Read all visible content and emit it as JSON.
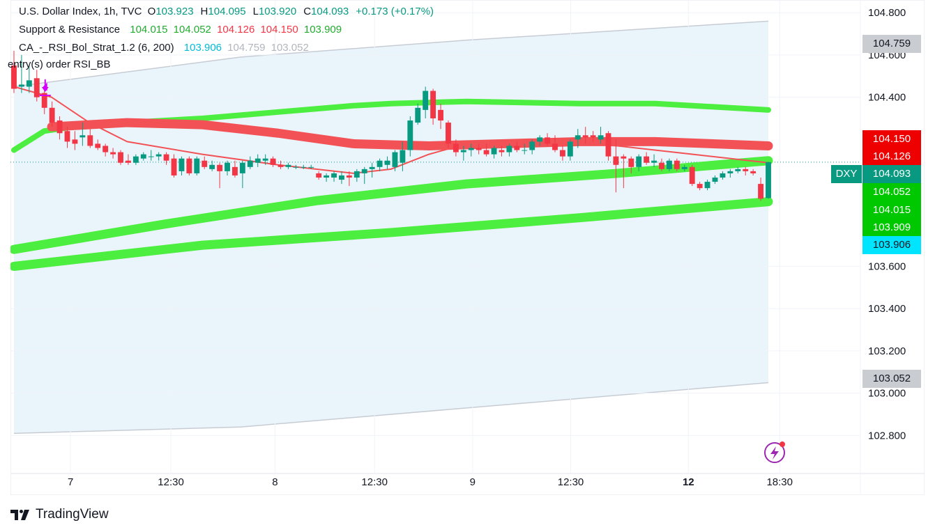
{
  "legend": {
    "symbol_line": "U.S. Dollar Index, 1h, TVC",
    "ohlc": {
      "o_label": "O",
      "o": "103.923",
      "h_label": "H",
      "h": "104.095",
      "l_label": "L",
      "l": "103.920",
      "c_label": "C",
      "c": "104.093",
      "change": "+0.173 (+0.17%)"
    },
    "sr": {
      "name": "Support & Resistance",
      "v1": "104.015",
      "v2": "104.052",
      "v3": "104.126",
      "v4": "104.150",
      "v5": "103.909"
    },
    "strategy": {
      "name": "CA_-_RSI_Bol_Strat_1.2 (6, 200)",
      "v1": "103.906",
      "v2": "104.759",
      "v3": "103.052"
    },
    "entry_label": "entry(s) order RSI_BB"
  },
  "symbol_tag": "DXY",
  "price_tags": {
    "upper_band": "104.759",
    "r2": "104.150",
    "r1": "104.126",
    "last": "104.093",
    "s1": "104.052",
    "s2": "104.015",
    "s3": "103.909",
    "basis": "103.906",
    "lower_band": "103.052"
  },
  "colors": {
    "up": "#089981",
    "down": "#f23645",
    "support": "#4cee3f",
    "resistance": "#f25255",
    "band_fill": "#eaf4fb",
    "band_line": "#c7ccd4",
    "entry_marker": "#d500f9",
    "tag_green": "#00c800",
    "tag_red": "#ee0000",
    "tag_cyan": "#00e5ff",
    "tag_gray": "#b2b5be"
  },
  "branding": {
    "name": "TradingView"
  },
  "chart_data": {
    "type": "candlestick",
    "title": "U.S. Dollar Index, 1h, TVC",
    "y_ticks": [
      "102.800",
      "103.000",
      "103.200",
      "103.400",
      "103.600",
      "104.400",
      "104.600",
      "104.800"
    ],
    "x_ticks": [
      {
        "label": "7",
        "bold": false
      },
      {
        "label": "12:30",
        "bold": false
      },
      {
        "label": "8",
        "bold": false
      },
      {
        "label": "12:30",
        "bold": false
      },
      {
        "label": "9",
        "bold": false
      },
      {
        "label": "12:30",
        "bold": false
      },
      {
        "label": "12",
        "bold": true
      },
      {
        "label": "18:30",
        "bold": false
      }
    ],
    "ylim": [
      102.62,
      104.86
    ],
    "ohlc": [
      [
        104.55,
        104.62,
        104.42,
        104.44
      ],
      [
        104.45,
        104.6,
        104.42,
        104.46
      ],
      [
        104.45,
        104.55,
        104.42,
        104.48
      ],
      [
        104.49,
        104.53,
        104.38,
        104.4
      ],
      [
        104.42,
        104.45,
        104.32,
        104.35
      ],
      [
        104.35,
        104.38,
        104.26,
        104.28
      ],
      [
        104.29,
        104.31,
        104.2,
        104.23
      ],
      [
        104.24,
        104.26,
        104.16,
        104.19
      ],
      [
        104.2,
        104.24,
        104.15,
        104.18
      ],
      [
        104.21,
        104.28,
        104.17,
        104.22
      ],
      [
        104.22,
        104.25,
        104.16,
        104.17
      ],
      [
        104.18,
        104.2,
        104.15,
        104.16
      ],
      [
        104.17,
        104.18,
        104.12,
        104.14
      ],
      [
        104.14,
        104.16,
        104.11,
        104.13
      ],
      [
        104.14,
        104.15,
        104.08,
        104.09
      ],
      [
        104.1,
        104.13,
        104.08,
        104.09
      ],
      [
        104.09,
        104.13,
        104.08,
        104.12
      ],
      [
        104.11,
        104.14,
        104.1,
        104.13
      ],
      [
        104.12,
        104.15,
        104.1,
        104.12
      ],
      [
        104.12,
        104.14,
        104.1,
        104.13
      ],
      [
        104.13,
        104.14,
        104.08,
        104.1
      ],
      [
        104.11,
        104.13,
        104.02,
        104.03
      ],
      [
        104.05,
        104.12,
        104.03,
        104.11
      ],
      [
        104.11,
        104.12,
        104.03,
        104.04
      ],
      [
        104.04,
        104.12,
        104.03,
        104.11
      ],
      [
        104.1,
        104.12,
        104.06,
        104.07
      ],
      [
        104.06,
        104.1,
        104.05,
        104.08
      ],
      [
        104.08,
        104.09,
        103.97,
        104.05
      ],
      [
        104.05,
        104.1,
        104.03,
        104.09
      ],
      [
        104.07,
        104.1,
        104.02,
        104.03
      ],
      [
        104.04,
        104.1,
        103.97,
        104.09
      ],
      [
        104.07,
        104.12,
        104.06,
        104.1
      ],
      [
        104.09,
        104.13,
        104.07,
        104.11
      ],
      [
        104.1,
        104.13,
        104.08,
        104.11
      ],
      [
        104.11,
        104.12,
        104.07,
        104.08
      ],
      [
        104.08,
        104.1,
        104.06,
        104.07
      ],
      [
        104.07,
        104.09,
        104.06,
        104.08
      ],
      [
        104.07,
        104.08,
        104.06,
        104.07
      ],
      [
        104.07,
        104.08,
        104.06,
        104.07
      ],
      [
        104.07,
        104.08,
        104.06,
        104.07
      ],
      [
        104.04,
        104.05,
        104.01,
        104.02
      ],
      [
        104.02,
        104.04,
        104.0,
        104.03
      ],
      [
        104.02,
        104.05,
        104.0,
        104.04
      ],
      [
        104.01,
        104.05,
        103.99,
        104.03
      ],
      [
        104.03,
        104.05,
        103.98,
        104.02
      ],
      [
        104.02,
        104.06,
        104.0,
        104.05
      ],
      [
        104.04,
        104.07,
        103.99,
        104.06
      ],
      [
        104.06,
        104.09,
        104.02,
        104.07
      ],
      [
        104.07,
        104.11,
        104.05,
        104.1
      ],
      [
        104.08,
        104.12,
        104.06,
        104.1
      ],
      [
        104.07,
        104.15,
        104.05,
        104.14
      ],
      [
        104.09,
        104.19,
        104.05,
        104.15
      ],
      [
        104.15,
        104.31,
        104.12,
        104.29
      ],
      [
        104.28,
        104.37,
        104.27,
        104.35
      ],
      [
        104.34,
        104.45,
        104.3,
        104.43
      ],
      [
        104.43,
        104.44,
        104.27,
        104.3
      ],
      [
        104.34,
        104.37,
        104.25,
        104.29
      ],
      [
        104.28,
        104.29,
        104.16,
        104.18
      ],
      [
        104.18,
        104.2,
        104.12,
        104.14
      ],
      [
        104.14,
        104.17,
        104.1,
        104.15
      ],
      [
        104.15,
        104.18,
        104.12,
        104.16
      ],
      [
        104.16,
        104.18,
        104.13,
        104.15
      ],
      [
        104.15,
        104.18,
        104.12,
        104.13
      ],
      [
        104.13,
        104.17,
        104.11,
        104.16
      ],
      [
        104.15,
        104.17,
        104.12,
        104.14
      ],
      [
        104.14,
        104.18,
        104.12,
        104.17
      ],
      [
        104.17,
        104.19,
        104.14,
        104.15
      ],
      [
        104.15,
        104.18,
        104.13,
        104.15
      ],
      [
        104.15,
        104.2,
        104.13,
        104.19
      ],
      [
        104.19,
        104.22,
        104.17,
        104.21
      ],
      [
        104.21,
        104.23,
        104.17,
        104.18
      ],
      [
        104.18,
        104.22,
        104.14,
        104.15
      ],
      [
        104.15,
        104.17,
        104.1,
        104.12
      ],
      [
        104.12,
        104.2,
        104.1,
        104.19
      ],
      [
        104.2,
        104.25,
        104.16,
        104.22
      ],
      [
        104.22,
        104.26,
        104.18,
        104.21
      ],
      [
        104.22,
        104.24,
        104.19,
        104.21
      ],
      [
        104.2,
        104.26,
        104.18,
        104.22
      ],
      [
        104.23,
        104.24,
        104.1,
        104.12
      ],
      [
        104.12,
        104.2,
        103.95,
        104.08
      ],
      [
        104.12,
        104.13,
        103.97,
        104.11
      ],
      [
        104.11,
        104.12,
        104.04,
        104.07
      ],
      [
        104.07,
        104.13,
        104.05,
        104.12
      ],
      [
        104.12,
        104.14,
        104.08,
        104.09
      ],
      [
        104.09,
        104.13,
        104.07,
        104.1
      ],
      [
        104.09,
        104.11,
        104.05,
        104.06
      ],
      [
        104.06,
        104.11,
        104.05,
        104.1
      ],
      [
        104.1,
        104.11,
        104.05,
        104.06
      ],
      [
        104.06,
        104.08,
        104.05,
        104.07
      ],
      [
        104.07,
        104.08,
        103.98,
        103.99
      ],
      [
        103.99,
        104.0,
        103.96,
        103.97
      ],
      [
        103.97,
        104.01,
        103.96,
        104.0
      ],
      [
        104.0,
        104.03,
        103.99,
        104.02
      ],
      [
        104.02,
        104.05,
        104.01,
        104.04
      ],
      [
        104.04,
        104.06,
        104.02,
        104.05
      ],
      [
        104.05,
        104.07,
        104.04,
        104.06
      ],
      [
        104.06,
        104.07,
        104.03,
        104.05
      ],
      [
        104.05,
        104.06,
        104.03,
        104.04
      ],
      [
        103.99,
        104.02,
        103.91,
        103.92
      ],
      [
        103.923,
        104.095,
        103.92,
        104.093
      ]
    ],
    "bands": {
      "upper": [
        [
          0,
          104.45
        ],
        [
          30,
          104.59
        ],
        [
          60,
          104.67
        ],
        [
          100,
          104.76
        ]
      ],
      "lower": [
        [
          0,
          102.81
        ],
        [
          30,
          102.84
        ],
        [
          60,
          102.93
        ],
        [
          100,
          103.05
        ]
      ],
      "upper_value": 104.759,
      "lower_value": 103.052
    },
    "support_lines": [
      {
        "name": "103.909",
        "points": [
          [
            0,
            103.68
          ],
          [
            20,
            103.8
          ],
          [
            40,
            103.91
          ],
          [
            60,
            103.99
          ],
          [
            80,
            104.04
          ],
          [
            100,
            104.1
          ]
        ]
      },
      {
        "name": "103.906",
        "points": [
          [
            0,
            103.6
          ],
          [
            25,
            103.7
          ],
          [
            50,
            103.76
          ],
          [
            75,
            103.83
          ],
          [
            100,
            103.906
          ]
        ]
      },
      {
        "name": "104.052",
        "points": [
          [
            0,
            104.15
          ],
          [
            4,
            104.24
          ],
          [
            10,
            104.27
          ],
          [
            25,
            104.3
          ],
          [
            45,
            104.36
          ],
          [
            50,
            104.37
          ],
          [
            60,
            104.38
          ],
          [
            75,
            104.37
          ],
          [
            85,
            104.37
          ],
          [
            100,
            104.34
          ]
        ]
      }
    ],
    "resistance_lines": [
      {
        "name": "104.150",
        "points": [
          [
            5,
            104.26
          ],
          [
            15,
            104.28
          ],
          [
            25,
            104.27
          ],
          [
            35,
            104.23
          ],
          [
            45,
            104.18
          ],
          [
            55,
            104.17
          ],
          [
            65,
            104.18
          ],
          [
            75,
            104.19
          ],
          [
            85,
            104.19
          ],
          [
            100,
            104.17
          ]
        ]
      }
    ],
    "thin_ma": {
      "name": "104.126",
      "points": [
        [
          0,
          104.45
        ],
        [
          5,
          104.4
        ],
        [
          10,
          104.28
        ],
        [
          15,
          104.19
        ],
        [
          25,
          104.13
        ],
        [
          35,
          104.08
        ],
        [
          45,
          104.04
        ],
        [
          50,
          104.06
        ],
        [
          55,
          104.13
        ],
        [
          60,
          104.18
        ],
        [
          70,
          104.19
        ],
        [
          80,
          104.17
        ],
        [
          90,
          104.13
        ],
        [
          100,
          104.09
        ]
      ]
    },
    "entry_marker_index": 3,
    "last_price": 104.093
  }
}
